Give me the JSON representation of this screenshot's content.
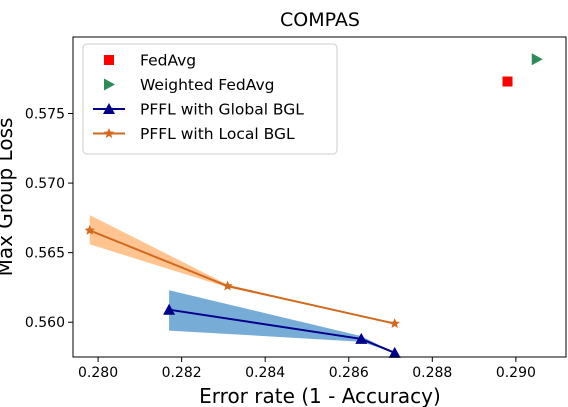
{
  "chart_data": {
    "type": "scatter",
    "title": "COMPAS",
    "xlabel": "Error rate (1 - Accuracy)",
    "ylabel": "Max Group Loss",
    "xlim": [
      0.2794,
      0.2912
    ],
    "ylim": [
      0.5575,
      0.5805
    ],
    "xticks": [
      "0.280",
      "0.282",
      "0.284",
      "0.286",
      "0.288",
      "0.290"
    ],
    "xtick_values": [
      0.28,
      0.282,
      0.284,
      0.286,
      0.288,
      0.29
    ],
    "yticks": [
      "0.560",
      "0.565",
      "0.570",
      "0.575"
    ],
    "ytick_values": [
      0.56,
      0.565,
      0.57,
      0.575
    ],
    "grid": false,
    "legend_position": "top-left",
    "series": [
      {
        "name": "FedAvg",
        "marker": "square",
        "color": "#ff0000",
        "line": false,
        "x": [
          0.2898
        ],
        "y": [
          0.5773
        ]
      },
      {
        "name": "Weighted FedAvg",
        "marker": "triangle-right",
        "color": "#2e8b57",
        "line": false,
        "x": [
          0.2905
        ],
        "y": [
          0.5789
        ]
      },
      {
        "name": "PFFL with Global BGL",
        "marker": "triangle-up",
        "color": "#00008b",
        "line": true,
        "x": [
          0.2817,
          0.2863,
          0.2871
        ],
        "y": [
          0.5609,
          0.5588,
          0.5578
        ],
        "band_upper": [
          0.5623,
          0.559,
          0.5578
        ],
        "band_lower": [
          0.5594,
          0.5586,
          0.5578
        ],
        "band_color": "#4a90c8"
      },
      {
        "name": "PFFL with Local BGL",
        "marker": "star",
        "color": "#d2691e",
        "line": true,
        "x": [
          0.2798,
          0.2831,
          0.2871
        ],
        "y": [
          0.5666,
          0.5626,
          0.5599
        ],
        "band_upper": [
          0.5677,
          0.5627,
          0.5599
        ],
        "band_lower": [
          0.5656,
          0.5625,
          0.5599
        ],
        "band_color": "#ffb06b"
      }
    ]
  }
}
